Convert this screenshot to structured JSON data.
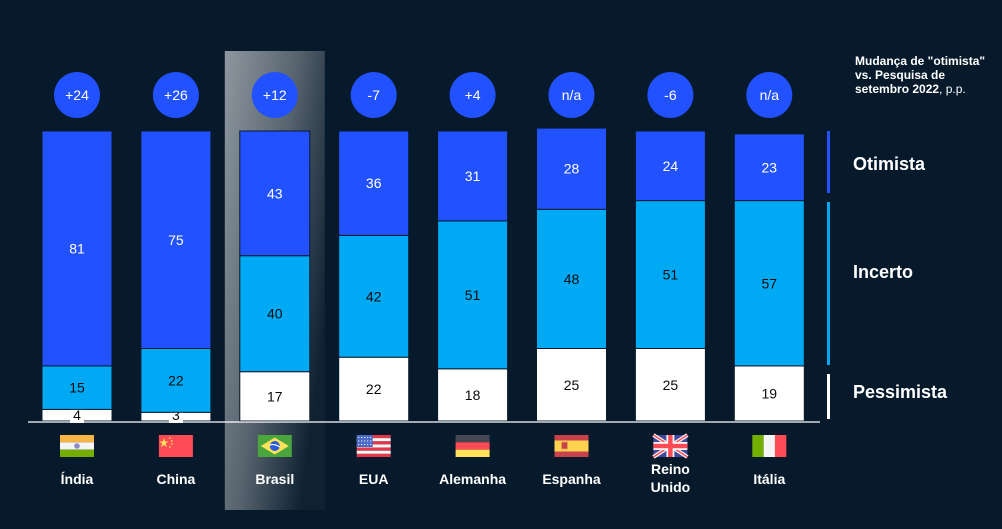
{
  "note": {
    "bold": "Mudança de \"otimista\" vs. Pesquisa de setembro 2022",
    "light": ", p.p."
  },
  "colors": {
    "background": "#061a2b",
    "optimist": "#2251ff",
    "uncertain": "#00a9f4",
    "pessimist": "#ffffff",
    "badge": "#2251ff"
  },
  "chart_data": {
    "type": "bar",
    "stacked": true,
    "orientation": "vertical",
    "title": "",
    "xlabel": "",
    "ylabel": "",
    "ylim": [
      0,
      100
    ],
    "unit": "%",
    "categories": [
      "Índia",
      "China",
      "Brasil",
      "EUA",
      "Alemanha",
      "Espanha",
      "Reino Unido",
      "Itália"
    ],
    "highlighted_category": "Brasil",
    "series": [
      {
        "name": "Pessimista",
        "color": "#ffffff",
        "values": [
          4,
          3,
          17,
          22,
          18,
          25,
          25,
          19
        ]
      },
      {
        "name": "Incerto",
        "color": "#00a9f4",
        "values": [
          15,
          22,
          40,
          42,
          51,
          48,
          51,
          57
        ]
      },
      {
        "name": "Otimista",
        "color": "#2251ff",
        "values": [
          81,
          75,
          43,
          36,
          31,
          28,
          24,
          23
        ]
      }
    ],
    "change_vs_sep_2022": [
      "+24",
      "+26",
      "+12",
      "-7",
      "+4",
      "n/a",
      "-6",
      "n/a"
    ],
    "legend": [
      "Otimista",
      "Incerto",
      "Pessimista"
    ],
    "legend_position": "right",
    "grid": false,
    "flags": [
      "india-flag",
      "china-flag",
      "brazil-flag",
      "usa-flag",
      "germany-flag",
      "spain-flag",
      "uk-flag",
      "italy-flag"
    ]
  }
}
